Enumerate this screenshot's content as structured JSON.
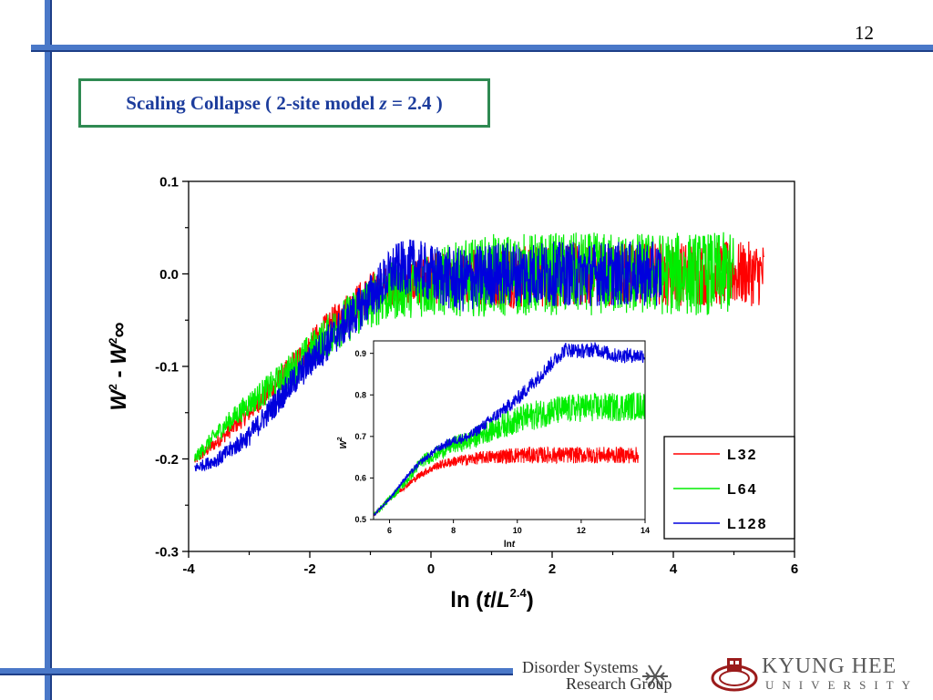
{
  "slide": {
    "page_number": "12",
    "title_prefix": "Scaling Collapse ( 2-site model ",
    "title_var": "z",
    "title_suffix": " = 2.4 )"
  },
  "logos": {
    "group_line1": "Disorder Systems",
    "group_line2": "Research Group",
    "univ_name": "KYUNG HEE",
    "univ_sub": "UNIVERSITY"
  },
  "colors": {
    "accent_bar": "#4a78c8",
    "title_text": "#1c3c9c",
    "title_border": "#2f8a52",
    "L32": "#ff0000",
    "L64": "#00ee00",
    "L128": "#0000dd"
  },
  "chart_data": [
    {
      "type": "line",
      "xlabel": "ln(t/L^2.4)",
      "ylabel": "W² - W²∞",
      "xlim": [
        -4,
        6
      ],
      "ylim": [
        -0.3,
        0.1
      ],
      "xticks": [
        "-4",
        "-2",
        "0",
        "2",
        "4",
        "6"
      ],
      "yticks": [
        "0.1",
        "0.0",
        "-0.1",
        "-0.2",
        "-0.3"
      ],
      "legend_position": "bottom-right",
      "legend": [
        "L32",
        "L64",
        "L128"
      ],
      "series": [
        {
          "name": "L32",
          "color": "#ff0000",
          "x_range": [
            -3.9,
            5.5
          ],
          "noise_late": 0.035,
          "points": [
            [
              -3.9,
              -0.202
            ],
            [
              -3.5,
              -0.18
            ],
            [
              -3.0,
              -0.15
            ],
            [
              -2.5,
              -0.115
            ],
            [
              -2.0,
              -0.078
            ],
            [
              -1.5,
              -0.045
            ],
            [
              -1.0,
              -0.02
            ],
            [
              -0.5,
              -0.008
            ],
            [
              0.0,
              -0.005
            ],
            [
              0.5,
              -0.004
            ],
            [
              1.5,
              -0.002
            ],
            [
              3.0,
              0.0
            ],
            [
              4.0,
              0.0
            ],
            [
              5.5,
              0.0
            ]
          ]
        },
        {
          "name": "L64",
          "color": "#00ee00",
          "x_range": [
            -3.9,
            5.0
          ],
          "noise_late": 0.045,
          "points": [
            [
              -3.9,
              -0.2
            ],
            [
              -3.5,
              -0.17
            ],
            [
              -3.0,
              -0.14
            ],
            [
              -2.5,
              -0.115
            ],
            [
              -2.0,
              -0.085
            ],
            [
              -1.5,
              -0.055
            ],
            [
              -1.0,
              -0.03
            ],
            [
              -0.5,
              -0.015
            ],
            [
              0.0,
              -0.01
            ],
            [
              0.5,
              -0.005
            ],
            [
              1.0,
              -0.002
            ],
            [
              2.0,
              0.0
            ],
            [
              3.0,
              0.0
            ],
            [
              5.0,
              0.0
            ]
          ]
        },
        {
          "name": "L128",
          "color": "#0000dd",
          "x_range": [
            -3.9,
            3.8
          ],
          "noise_late": 0.035,
          "points": [
            [
              -3.9,
              -0.21
            ],
            [
              -3.5,
              -0.2
            ],
            [
              -3.0,
              -0.175
            ],
            [
              -2.5,
              -0.135
            ],
            [
              -2.0,
              -0.095
            ],
            [
              -1.5,
              -0.06
            ],
            [
              -1.0,
              -0.025
            ],
            [
              -0.6,
              0.005
            ],
            [
              -0.3,
              0.008
            ],
            [
              0.0,
              0.0
            ],
            [
              0.5,
              -0.008
            ],
            [
              1.0,
              0.0
            ],
            [
              2.0,
              0.0
            ],
            [
              3.8,
              0.0
            ]
          ]
        }
      ]
    },
    {
      "type": "line",
      "xlabel": "ln t",
      "ylabel": "W²",
      "xlim": [
        5.5,
        14
      ],
      "ylim": [
        0.5,
        0.93
      ],
      "xticks": [
        "6",
        "8",
        "10",
        "12",
        "14"
      ],
      "yticks": [
        "0.9",
        "0.8",
        "0.7",
        "0.6",
        "0.5"
      ],
      "series": [
        {
          "name": "L32",
          "color": "#ff0000",
          "x_range": [
            5.5,
            13.8
          ],
          "noise_late": 0.02,
          "points": [
            [
              5.5,
              0.51
            ],
            [
              6.0,
              0.55
            ],
            [
              6.5,
              0.58
            ],
            [
              7.0,
              0.61
            ],
            [
              7.5,
              0.63
            ],
            [
              8.0,
              0.64
            ],
            [
              9.0,
              0.65
            ],
            [
              10.0,
              0.655
            ],
            [
              11.0,
              0.655
            ],
            [
              13.8,
              0.655
            ]
          ]
        },
        {
          "name": "L64",
          "color": "#00ee00",
          "x_range": [
            5.5,
            14.0
          ],
          "noise_late": 0.035,
          "points": [
            [
              5.5,
              0.51
            ],
            [
              6.0,
              0.55
            ],
            [
              6.5,
              0.59
            ],
            [
              7.0,
              0.64
            ],
            [
              7.5,
              0.66
            ],
            [
              8.0,
              0.68
            ],
            [
              8.5,
              0.69
            ],
            [
              9.0,
              0.71
            ],
            [
              10.0,
              0.74
            ],
            [
              11.0,
              0.76
            ],
            [
              12.0,
              0.77
            ],
            [
              13.0,
              0.77
            ],
            [
              14.0,
              0.775
            ]
          ]
        },
        {
          "name": "L128",
          "color": "#0000dd",
          "x_range": [
            5.5,
            14.0
          ],
          "noise_late": 0.018,
          "points": [
            [
              5.5,
              0.51
            ],
            [
              6.0,
              0.55
            ],
            [
              6.5,
              0.6
            ],
            [
              7.0,
              0.64
            ],
            [
              7.5,
              0.67
            ],
            [
              8.0,
              0.69
            ],
            [
              8.5,
              0.7
            ],
            [
              9.0,
              0.73
            ],
            [
              9.5,
              0.76
            ],
            [
              10.0,
              0.79
            ],
            [
              10.5,
              0.83
            ],
            [
              11.0,
              0.87
            ],
            [
              11.5,
              0.91
            ],
            [
              12.0,
              0.905
            ],
            [
              12.5,
              0.91
            ],
            [
              13.0,
              0.895
            ],
            [
              14.0,
              0.895
            ]
          ]
        }
      ]
    }
  ]
}
